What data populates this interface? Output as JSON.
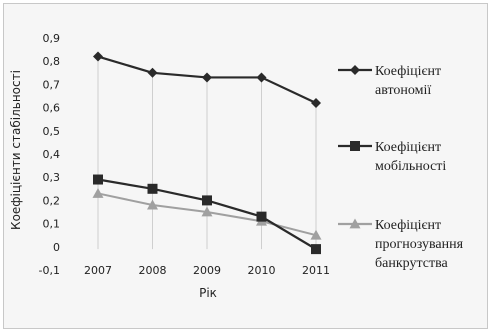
{
  "chart_data": {
    "type": "line",
    "title": "",
    "xlabel": "Рік",
    "ylabel": "Коефіцієнти стабільності",
    "ylim": [
      -0.1,
      0.9
    ],
    "y_ticks": [
      "-0,1",
      "0",
      "0,1",
      "0,2",
      "0,3",
      "0,4",
      "0,5",
      "0,6",
      "0,7",
      "0,8",
      "0,9"
    ],
    "categories": [
      "2007",
      "2008",
      "2009",
      "2010",
      "2011"
    ],
    "grid": "vertical drop lines at each year",
    "legend_position": "right",
    "series": [
      {
        "name": "Коефіцієнт автономії",
        "legend_lines": [
          "Коефіцієнт",
          "автономії"
        ],
        "values": [
          0.82,
          0.75,
          0.73,
          0.73,
          0.62
        ],
        "marker": "diamond",
        "color": "#2a2a2a"
      },
      {
        "name": "Коефіцієнт мобільності",
        "legend_lines": [
          "Коефіцієнт",
          "мобільності"
        ],
        "values": [
          0.29,
          0.25,
          0.2,
          0.13,
          -0.01
        ],
        "marker": "square",
        "color": "#2a2a2a"
      },
      {
        "name": "Коефіцієнт прогнозування банкрутства",
        "legend_lines": [
          "Коефіцієнт",
          "прогнозування",
          "банкрутства"
        ],
        "values": [
          0.23,
          0.18,
          0.15,
          0.11,
          0.05
        ],
        "marker": "triangle",
        "color": "#a0a0a0"
      }
    ]
  }
}
